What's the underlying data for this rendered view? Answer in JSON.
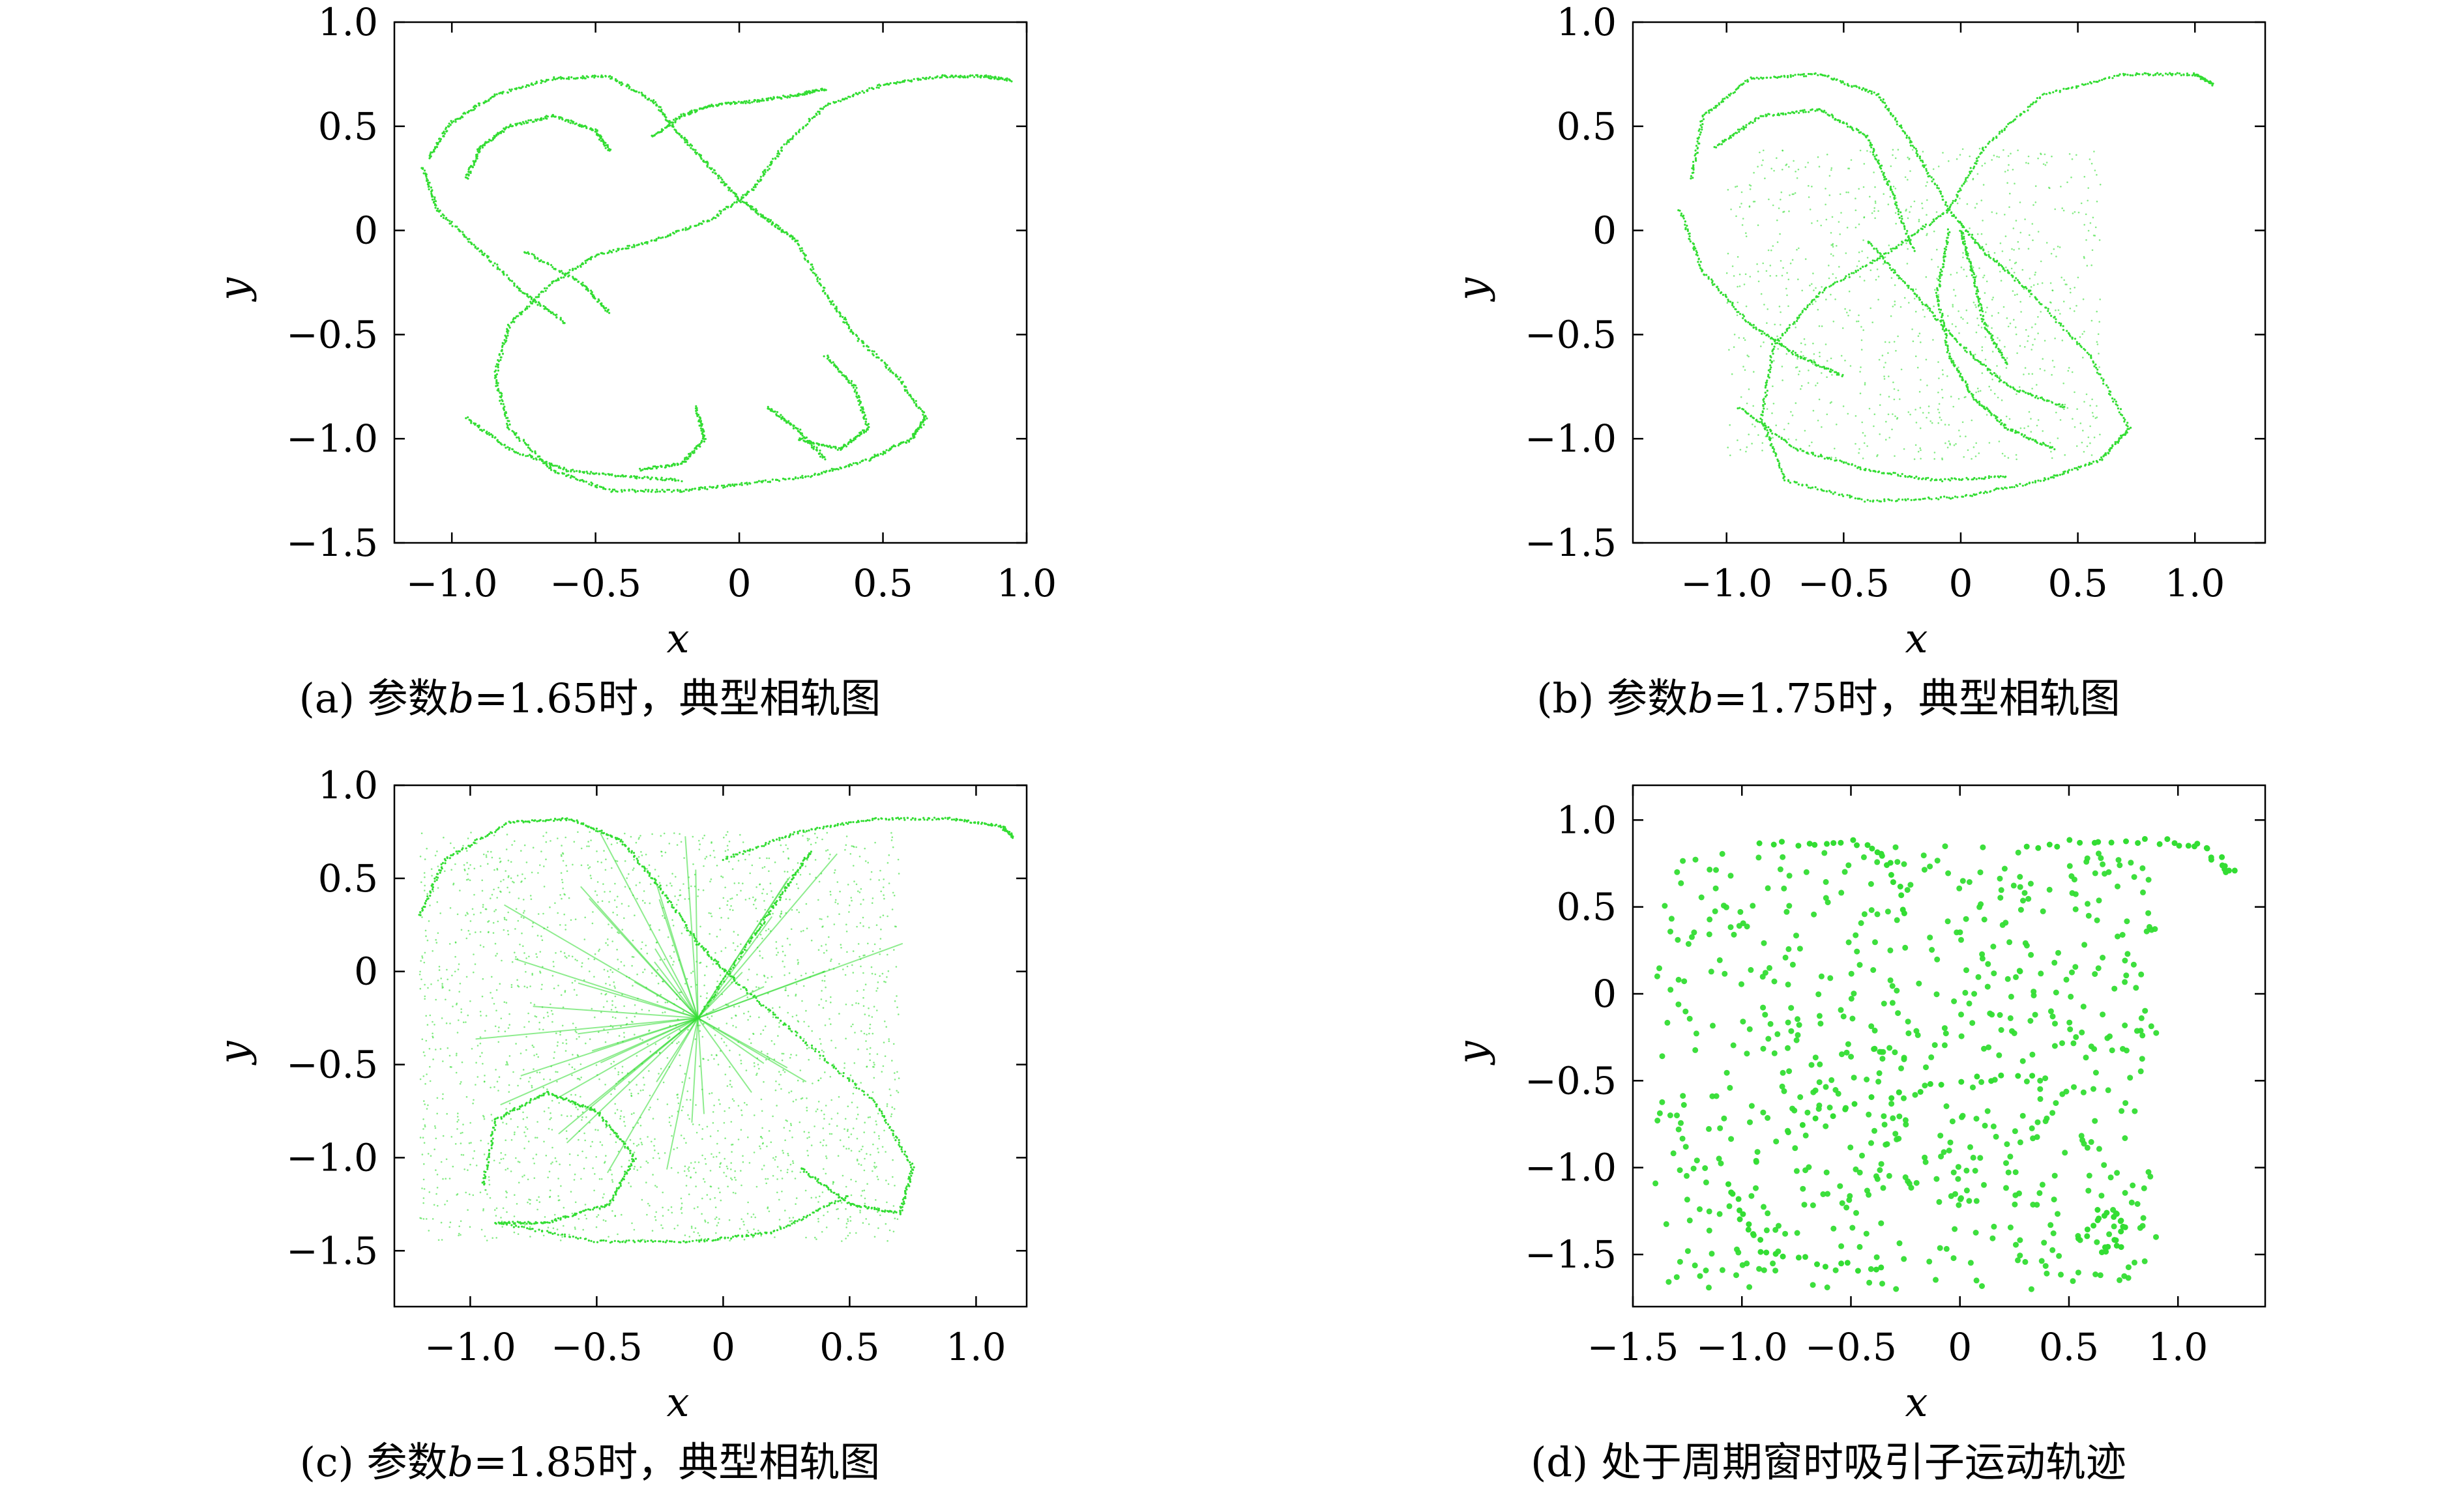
{
  "chart_data": [
    {
      "type": "scatter",
      "id": "a",
      "caption": {
        "prefix": "(a) 参数",
        "var": "b",
        "suffix": "=1.65时，典型相轨图"
      },
      "xlabel": "x",
      "ylabel": "y",
      "xlim": [
        -1.2,
        1.0
      ],
      "ylim": [
        -1.5,
        1.0
      ],
      "xticks": [
        {
          "v": -1.0,
          "label": "−1.0"
        },
        {
          "v": -0.5,
          "label": "−0.5"
        },
        {
          "v": 0,
          "label": "0"
        },
        {
          "v": 0.5,
          "label": "0.5"
        },
        {
          "v": 1.0,
          "label": "1.0"
        }
      ],
      "yticks": [
        {
          "v": 1.0,
          "label": "1.0"
        },
        {
          "v": 0.5,
          "label": "0.5"
        },
        {
          "v": 0,
          "label": "0"
        },
        {
          "v": -0.5,
          "label": "−0.5"
        },
        {
          "v": -1.0,
          "label": "−1.0"
        },
        {
          "v": -1.5,
          "label": "−1.5"
        }
      ],
      "color": "#33dd33",
      "series": [
        {
          "points": [
            [
              -1.08,
              0.35
            ],
            [
              -1.0,
              0.52
            ],
            [
              -0.85,
              0.65
            ],
            [
              -0.65,
              0.73
            ],
            [
              -0.45,
              0.74
            ],
            [
              -0.3,
              0.62
            ],
            [
              -0.2,
              0.45
            ],
            [
              -0.1,
              0.3
            ],
            [
              0.0,
              0.15
            ],
            [
              0.1,
              0.05
            ],
            [
              0.2,
              -0.05
            ],
            [
              0.3,
              -0.3
            ],
            [
              0.4,
              -0.5
            ],
            [
              0.55,
              -0.7
            ],
            [
              0.65,
              -0.9
            ],
            [
              0.6,
              -1.0
            ],
            [
              0.45,
              -1.1
            ],
            [
              0.25,
              -1.18
            ],
            [
              0.0,
              -1.22
            ],
            [
              -0.2,
              -1.25
            ],
            [
              -0.45,
              -1.25
            ],
            [
              -0.65,
              -1.15
            ],
            [
              -0.8,
              -0.95
            ],
            [
              -0.85,
              -0.7
            ],
            [
              -0.8,
              -0.45
            ],
            [
              -0.65,
              -0.25
            ],
            [
              -0.5,
              -0.12
            ],
            [
              -0.3,
              -0.05
            ],
            [
              -0.1,
              0.05
            ],
            [
              0.05,
              0.2
            ],
            [
              0.15,
              0.4
            ],
            [
              0.3,
              0.6
            ],
            [
              0.5,
              0.7
            ],
            [
              0.7,
              0.74
            ],
            [
              0.85,
              0.74
            ],
            [
              0.95,
              0.72
            ]
          ]
        },
        {
          "points": [
            [
              -1.1,
              0.3
            ],
            [
              -1.05,
              0.1
            ],
            [
              -0.9,
              -0.1
            ],
            [
              -0.75,
              -0.3
            ],
            [
              -0.6,
              -0.45
            ]
          ]
        },
        {
          "points": [
            [
              -0.95,
              0.25
            ],
            [
              -0.9,
              0.4
            ],
            [
              -0.8,
              0.5
            ],
            [
              -0.65,
              0.55
            ],
            [
              -0.5,
              0.48
            ],
            [
              -0.45,
              0.38
            ]
          ]
        },
        {
          "points": [
            [
              -0.3,
              0.45
            ],
            [
              -0.2,
              0.55
            ],
            [
              -0.1,
              0.6
            ],
            [
              0.05,
              0.62
            ],
            [
              0.2,
              0.65
            ],
            [
              0.3,
              0.68
            ]
          ]
        },
        {
          "points": [
            [
              -0.95,
              -0.9
            ],
            [
              -0.8,
              -1.05
            ],
            [
              -0.6,
              -1.15
            ],
            [
              -0.4,
              -1.18
            ],
            [
              -0.2,
              -1.2
            ]
          ]
        },
        {
          "points": [
            [
              0.3,
              -0.6
            ],
            [
              0.4,
              -0.75
            ],
            [
              0.45,
              -0.95
            ],
            [
              0.35,
              -1.05
            ],
            [
              0.2,
              -1.0
            ]
          ]
        },
        {
          "points": [
            [
              -0.75,
              -0.1
            ],
            [
              -0.55,
              -0.25
            ],
            [
              -0.45,
              -0.4
            ]
          ]
        },
        {
          "points": [
            [
              -0.15,
              -0.85
            ],
            [
              -0.12,
              -1.0
            ],
            [
              -0.2,
              -1.12
            ],
            [
              -0.35,
              -1.15
            ]
          ]
        },
        {
          "points": [
            [
              0.1,
              -0.85
            ],
            [
              0.2,
              -0.95
            ],
            [
              0.3,
              -1.1
            ]
          ]
        }
      ]
    },
    {
      "type": "scatter",
      "id": "b",
      "caption": {
        "prefix": "(b) 参数",
        "var": "b",
        "suffix": "=1.75时，典型相轨图"
      },
      "xlabel": "x",
      "ylabel": "y",
      "xlim": [
        -1.4,
        1.3
      ],
      "ylim": [
        -1.5,
        1.0
      ],
      "xticks": [
        {
          "v": -1.0,
          "label": "−1.0"
        },
        {
          "v": -0.5,
          "label": "−0.5"
        },
        {
          "v": 0,
          "label": "0"
        },
        {
          "v": 0.5,
          "label": "0.5"
        },
        {
          "v": 1.0,
          "label": "1.0"
        }
      ],
      "yticks": [
        {
          "v": 1.0,
          "label": "1.0"
        },
        {
          "v": 0.5,
          "label": "0.5"
        },
        {
          "v": 0,
          "label": "0"
        },
        {
          "v": -0.5,
          "label": "−0.5"
        },
        {
          "v": -1.0,
          "label": "−1.0"
        },
        {
          "v": -1.5,
          "label": "−1.5"
        }
      ],
      "color": "#33dd33",
      "series": [
        {
          "points": [
            [
              -1.15,
              0.25
            ],
            [
              -1.1,
              0.55
            ],
            [
              -0.9,
              0.73
            ],
            [
              -0.6,
              0.75
            ],
            [
              -0.35,
              0.65
            ],
            [
              -0.2,
              0.4
            ],
            [
              -0.05,
              0.1
            ],
            [
              0.1,
              -0.1
            ],
            [
              0.3,
              -0.3
            ],
            [
              0.55,
              -0.6
            ],
            [
              0.72,
              -0.95
            ],
            [
              0.6,
              -1.1
            ],
            [
              0.35,
              -1.2
            ],
            [
              0.0,
              -1.28
            ],
            [
              -0.4,
              -1.3
            ],
            [
              -0.75,
              -1.2
            ],
            [
              -0.85,
              -0.9
            ],
            [
              -0.8,
              -0.55
            ],
            [
              -0.6,
              -0.3
            ],
            [
              -0.3,
              -0.1
            ],
            [
              -0.05,
              0.1
            ],
            [
              0.1,
              0.4
            ],
            [
              0.35,
              0.65
            ],
            [
              0.7,
              0.75
            ],
            [
              1.0,
              0.75
            ],
            [
              1.08,
              0.7
            ]
          ]
        },
        {
          "points": [
            [
              -1.2,
              0.1
            ],
            [
              -1.1,
              -0.2
            ],
            [
              -0.9,
              -0.45
            ],
            [
              -0.7,
              -0.6
            ],
            [
              -0.5,
              -0.7
            ]
          ]
        },
        {
          "points": [
            [
              -1.05,
              0.4
            ],
            [
              -0.85,
              0.55
            ],
            [
              -0.6,
              0.58
            ],
            [
              -0.4,
              0.45
            ],
            [
              -0.3,
              0.2
            ],
            [
              -0.2,
              -0.1
            ]
          ]
        },
        {
          "points": [
            [
              -0.05,
              0.0
            ],
            [
              -0.1,
              -0.3
            ],
            [
              -0.05,
              -0.6
            ],
            [
              0.05,
              -0.8
            ],
            [
              0.2,
              -0.95
            ],
            [
              0.4,
              -1.05
            ]
          ]
        },
        {
          "points": [
            [
              -0.4,
              -0.05
            ],
            [
              -0.2,
              -0.3
            ],
            [
              0.0,
              -0.55
            ],
            [
              0.2,
              -0.75
            ],
            [
              0.45,
              -0.85
            ]
          ]
        },
        {
          "points": [
            [
              -0.95,
              -0.85
            ],
            [
              -0.7,
              -1.05
            ],
            [
              -0.4,
              -1.15
            ],
            [
              -0.1,
              -1.2
            ],
            [
              0.2,
              -1.18
            ]
          ]
        },
        {
          "points": [
            [
              0.0,
              0.0
            ],
            [
              0.05,
              -0.2
            ],
            [
              0.1,
              -0.45
            ],
            [
              0.2,
              -0.65
            ]
          ]
        }
      ],
      "cloud": {
        "count": 900,
        "x": [
          -1.0,
          0.6
        ],
        "y": [
          -1.1,
          0.4
        ]
      }
    },
    {
      "type": "scatter",
      "id": "c",
      "caption": {
        "prefix": "(c) 参数",
        "var": "b",
        "suffix": "=1.85时，典型相轨图"
      },
      "xlabel": "x",
      "ylabel": "y",
      "xlim": [
        -1.3,
        1.2
      ],
      "ylim": [
        -1.8,
        1.0
      ],
      "xticks": [
        {
          "v": -1.0,
          "label": "−1.0"
        },
        {
          "v": -0.5,
          "label": "−0.5"
        },
        {
          "v": 0,
          "label": "0"
        },
        {
          "v": 0.5,
          "label": "0.5"
        },
        {
          "v": 1.0,
          "label": "1.0"
        }
      ],
      "yticks": [
        {
          "v": 1.0,
          "label": "1.0"
        },
        {
          "v": 0.5,
          "label": "0.5"
        },
        {
          "v": 0,
          "label": "0"
        },
        {
          "v": -0.5,
          "label": "−0.5"
        },
        {
          "v": -1.0,
          "label": "−1.0"
        },
        {
          "v": -1.5,
          "label": "−1.5"
        }
      ],
      "color": "#33dd33",
      "series": [
        {
          "points": [
            [
              -1.2,
              0.3
            ],
            [
              -1.1,
              0.6
            ],
            [
              -0.85,
              0.8
            ],
            [
              -0.6,
              0.82
            ],
            [
              -0.4,
              0.7
            ],
            [
              -0.25,
              0.45
            ],
            [
              -0.1,
              0.15
            ],
            [
              0.05,
              -0.05
            ],
            [
              0.3,
              -0.35
            ],
            [
              0.6,
              -0.7
            ],
            [
              0.75,
              -1.05
            ],
            [
              0.7,
              -1.3
            ],
            [
              0.5,
              -1.25
            ],
            [
              0.3,
              -1.05
            ]
          ]
        },
        {
          "points": [
            [
              -0.95,
              -1.15
            ],
            [
              -0.9,
              -0.8
            ],
            [
              -0.7,
              -0.65
            ],
            [
              -0.5,
              -0.75
            ],
            [
              -0.35,
              -1.0
            ],
            [
              -0.45,
              -1.25
            ],
            [
              -0.7,
              -1.35
            ],
            [
              -0.9,
              -1.35
            ]
          ]
        },
        {
          "points": [
            [
              -0.9,
              -1.35
            ],
            [
              -0.5,
              -1.45
            ],
            [
              -0.1,
              -1.45
            ],
            [
              0.2,
              -1.4
            ],
            [
              0.5,
              -1.2
            ]
          ]
        },
        {
          "points": [
            [
              0.0,
              0.6
            ],
            [
              0.3,
              0.75
            ],
            [
              0.6,
              0.82
            ],
            [
              0.9,
              0.82
            ],
            [
              1.1,
              0.78
            ],
            [
              1.15,
              0.72
            ]
          ]
        },
        {
          "points": [
            [
              -0.1,
              -0.25
            ],
            [
              0.1,
              0.15
            ],
            [
              0.25,
              0.45
            ],
            [
              0.35,
              0.65
            ]
          ]
        }
      ],
      "cloud": {
        "count": 2200,
        "x": [
          -1.2,
          0.7
        ],
        "y": [
          -1.45,
          0.75
        ]
      },
      "rays": {
        "center": [
          -0.1,
          -0.25
        ],
        "count": 42
      }
    },
    {
      "type": "scatter",
      "id": "d",
      "caption": {
        "prefix": "(d) 处于周期窗时吸引子运动轨迹",
        "var": "",
        "suffix": ""
      },
      "xlabel": "x",
      "ylabel": "y",
      "xlim": [
        -1.5,
        1.4
      ],
      "ylim": [
        -1.8,
        1.2
      ],
      "xticks": [
        {
          "v": -1.5,
          "label": "−1.5"
        },
        {
          "v": -1.0,
          "label": "−1.0"
        },
        {
          "v": -0.5,
          "label": "−0.5"
        },
        {
          "v": 0,
          "label": "0"
        },
        {
          "v": 0.5,
          "label": "0.5"
        },
        {
          "v": 1.0,
          "label": "1.0"
        }
      ],
      "yticks": [
        {
          "v": 1.0,
          "label": "1.0"
        },
        {
          "v": 0.5,
          "label": "0.5"
        },
        {
          "v": 0,
          "label": "0"
        },
        {
          "v": -0.5,
          "label": "−0.5"
        },
        {
          "v": -1.0,
          "label": "−1.0"
        },
        {
          "v": -1.5,
          "label": "−1.5"
        }
      ],
      "color": "#33dd33",
      "series": [
        {
          "points": [
            [
              0.3,
              0.85
            ],
            [
              0.6,
              0.88
            ],
            [
              0.9,
              0.88
            ],
            [
              1.1,
              0.85
            ],
            [
              1.2,
              0.75
            ],
            [
              1.25,
              0.68
            ]
          ]
        },
        {
          "points": [
            [
              -0.9,
              0.85
            ],
            [
              -0.6,
              0.88
            ],
            [
              -0.4,
              0.85
            ],
            [
              -0.3,
              0.7
            ],
            [
              -0.25,
              0.4
            ]
          ]
        },
        {
          "points": [
            [
              -1.05,
              -1.1
            ],
            [
              -1.0,
              -1.3
            ],
            [
              -0.9,
              -1.5
            ],
            [
              -0.6,
              -1.55
            ],
            [
              -0.3,
              -1.6
            ]
          ]
        },
        {
          "points": [
            [
              0.55,
              -1.4
            ],
            [
              0.65,
              -1.25
            ],
            [
              0.75,
              -1.3
            ],
            [
              0.72,
              -1.45
            ],
            [
              0.62,
              -1.48
            ]
          ]
        },
        {
          "points": [
            [
              -0.8,
              -0.8
            ],
            [
              -0.4,
              -0.6
            ],
            [
              0.0,
              -0.5
            ],
            [
              0.4,
              -0.45
            ]
          ]
        }
      ],
      "cloud": {
        "count": 650,
        "x": [
          -1.4,
          0.9
        ],
        "y": [
          -1.7,
          0.85
        ]
      },
      "bigDots": true
    }
  ]
}
